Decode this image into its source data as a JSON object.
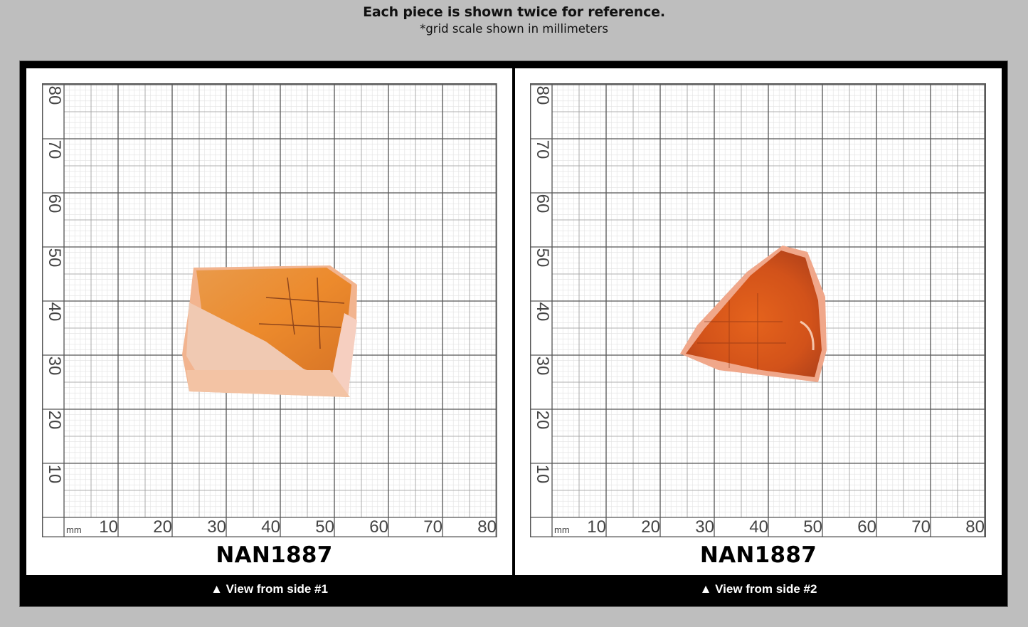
{
  "header": {
    "title": "Each piece is shown twice for reference.",
    "subtitle": "*grid scale shown in millimeters"
  },
  "grid": {
    "unit": "mm",
    "y_labels": [
      "80",
      "70",
      "60",
      "50",
      "40",
      "30",
      "20",
      "10"
    ],
    "x_labels": [
      "10",
      "20",
      "30",
      "40",
      "50",
      "60",
      "70",
      "80"
    ]
  },
  "panels": [
    {
      "code": "NAN1887",
      "caption": "▲ View from side #1",
      "stone_colors": {
        "body": "#e8893a",
        "frosted": "#f0c3a8",
        "edge": "#f2b48f"
      }
    },
    {
      "code": "NAN1887",
      "caption": "▲ View from side #2",
      "stone_colors": {
        "body": "#d9571a",
        "frosted": "#f3b7a2",
        "edge": "#f0a78a"
      }
    }
  ],
  "colors": {
    "background": "#bebebe",
    "frame": "#000000",
    "panel": "#ffffff",
    "grid_major": "#555555",
    "grid_minor": "#d4d4d4"
  }
}
